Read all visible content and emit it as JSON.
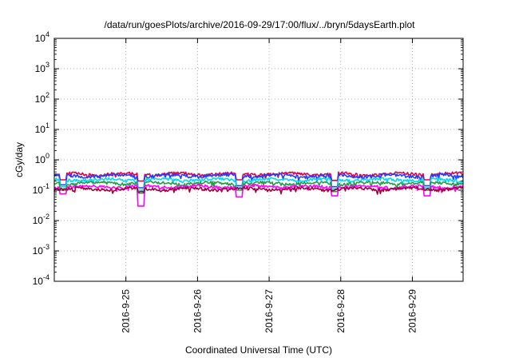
{
  "chart_data": {
    "type": "line",
    "title": "/data/run/goesPlots/archive/2016-09-29/17:00/flux/../bryn/5daysEarth.plot",
    "xlabel": "Coordinated Universal Time (UTC)",
    "ylabel": "cGy/day",
    "y_scale": "log",
    "ylim": [
      0.0001,
      10000
    ],
    "y_ticks": [
      {
        "base": "10",
        "exp": "-4",
        "value": 0.0001
      },
      {
        "base": "10",
        "exp": "-3",
        "value": 0.001
      },
      {
        "base": "10",
        "exp": "-2",
        "value": 0.01
      },
      {
        "base": "10",
        "exp": "-1",
        "value": 0.1
      },
      {
        "base": "10",
        "exp": "0",
        "value": 1
      },
      {
        "base": "10",
        "exp": "1",
        "value": 10
      },
      {
        "base": "10",
        "exp": "2",
        "value": 100
      },
      {
        "base": "10",
        "exp": "3",
        "value": 1000
      },
      {
        "base": "10",
        "exp": "4",
        "value": 10000
      }
    ],
    "xlim": [
      "2016-09-24T00:00",
      "2016-09-29T17:00"
    ],
    "x_ticks": [
      {
        "label": "2016-9-25",
        "date": "2016-09-25T00:00"
      },
      {
        "label": "2016-9-26",
        "date": "2016-09-26T00:00"
      },
      {
        "label": "2016-9-27",
        "date": "2016-09-27T00:00"
      },
      {
        "label": "2016-9-28",
        "date": "2016-09-28T00:00"
      },
      {
        "label": "2016-9-29",
        "date": "2016-09-29T00:00"
      }
    ],
    "grid": true,
    "legend": "none",
    "series": [
      {
        "color": "#e0004a",
        "baseline": 0.34,
        "dips": [
          {
            "date": "2016-09-24T03:00",
            "value": 0.22
          },
          {
            "date": "2016-09-25T05:00",
            "value": 0.2
          },
          {
            "date": "2016-09-26T14:00",
            "value": 0.22
          },
          {
            "date": "2016-09-27T22:00",
            "value": 0.21
          },
          {
            "date": "2016-09-29T05:00",
            "value": 0.22
          }
        ]
      },
      {
        "color": "#2040ff",
        "baseline": 0.3,
        "dips": [
          {
            "date": "2016-09-24T03:00",
            "value": 0.15
          },
          {
            "date": "2016-09-25T05:00",
            "value": 0.12
          },
          {
            "date": "2016-09-26T14:00",
            "value": 0.14
          },
          {
            "date": "2016-09-27T22:00",
            "value": 0.13
          },
          {
            "date": "2016-09-29T05:00",
            "value": 0.14
          }
        ]
      },
      {
        "color": "#00d8f0",
        "baseline": 0.22,
        "dips": [
          {
            "date": "2016-09-24T03:00",
            "value": 0.13
          },
          {
            "date": "2016-09-25T05:00",
            "value": 0.1
          },
          {
            "date": "2016-09-26T14:00",
            "value": 0.12
          },
          {
            "date": "2016-09-27T22:00",
            "value": 0.11
          },
          {
            "date": "2016-09-29T05:00",
            "value": 0.12
          }
        ]
      },
      {
        "color": "#20a040",
        "baseline": 0.17,
        "dips": [
          {
            "date": "2016-09-24T03:00",
            "value": 0.1
          },
          {
            "date": "2016-09-25T05:00",
            "value": 0.08
          },
          {
            "date": "2016-09-26T14:00",
            "value": 0.1
          },
          {
            "date": "2016-09-27T22:00",
            "value": 0.09
          },
          {
            "date": "2016-09-29T05:00",
            "value": 0.1
          }
        ]
      },
      {
        "color": "#ff00ff",
        "baseline": 0.13,
        "dips": [
          {
            "date": "2016-09-24T03:00",
            "value": 0.075
          },
          {
            "date": "2016-09-25T05:00",
            "value": 0.03
          },
          {
            "date": "2016-09-26T14:00",
            "value": 0.06
          },
          {
            "date": "2016-09-27T22:00",
            "value": 0.065
          },
          {
            "date": "2016-09-29T05:00",
            "value": 0.065
          }
        ]
      },
      {
        "color": "#a00040",
        "baseline": 0.11,
        "dips": [
          {
            "date": "2016-09-25T05:00",
            "value": 0.09
          }
        ]
      }
    ]
  }
}
